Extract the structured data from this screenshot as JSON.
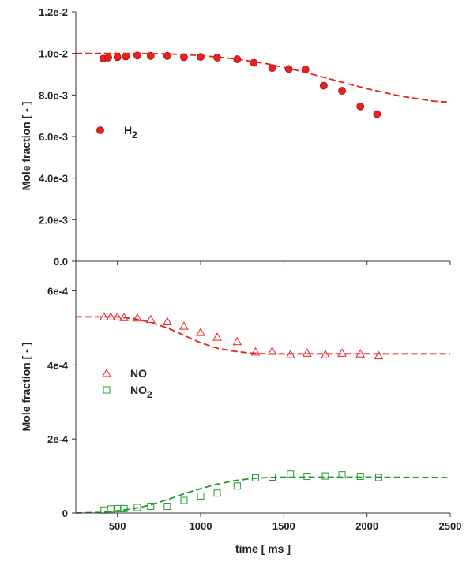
{
  "chart_data": [
    {
      "type": "scatter",
      "ylabel": "Mole fraction [ - ]",
      "xlim": [
        250,
        2500
      ],
      "ylim": [
        0,
        0.012
      ],
      "x_ticks": [
        500,
        1000,
        1500,
        2000,
        2500
      ],
      "y_ticks": [
        0,
        0.002,
        0.004,
        0.006,
        0.008,
        0.01,
        0.012
      ],
      "y_tick_labels": [
        "0.0",
        "2.0e-3",
        "4.0e-3",
        "6.0e-3",
        "8.0e-3",
        "1.0e-2",
        "1.2e-2"
      ],
      "legend_position": "middle-left",
      "series": [
        {
          "name": "H2",
          "name_main": "H",
          "name_sub": "2",
          "kind": "points",
          "marker": "filled-circle",
          "color": "#e8201e",
          "x": [
            415,
            445,
            500,
            550,
            620,
            700,
            800,
            900,
            1000,
            1100,
            1220,
            1320,
            1430,
            1530,
            1630,
            1740,
            1850,
            1960,
            2060
          ],
          "y": [
            0.00975,
            0.0098,
            0.00982,
            0.00985,
            0.0099,
            0.00988,
            0.00988,
            0.00982,
            0.00983,
            0.0098,
            0.00972,
            0.00955,
            0.0093,
            0.00925,
            0.00923,
            0.00845,
            0.0082,
            0.00745,
            0.00708
          ]
        },
        {
          "kind": "line",
          "style": "dashed",
          "color": "#e8201e",
          "x": [
            250,
            600,
            800,
            1000,
            1200,
            1400,
            1600,
            1800,
            2000,
            2200,
            2400,
            2500
          ],
          "y": [
            0.01,
            0.01,
            0.00998,
            0.0099,
            0.00975,
            0.0095,
            0.00915,
            0.00872,
            0.0083,
            0.00795,
            0.0077,
            0.00765
          ]
        }
      ]
    },
    {
      "type": "scatter",
      "xlabel": "time [ ms ]",
      "ylabel": "Mole fraction [ - ]",
      "xlim": [
        250,
        2500
      ],
      "ylim": [
        0,
        0.00068
      ],
      "x_ticks": [
        500,
        1000,
        1500,
        2000,
        2500
      ],
      "x_tick_labels": [
        "500",
        "1000",
        "1500",
        "2000",
        "2500"
      ],
      "y_ticks": [
        0,
        0.0002,
        0.0004,
        0.0006
      ],
      "y_tick_labels": [
        "0",
        "2e-4",
        "4e-4",
        "6e-4"
      ],
      "legend_position": "middle-left",
      "series": [
        {
          "name": "NO",
          "kind": "points",
          "marker": "open-triangle",
          "color": "#e8201e",
          "x": [
            420,
            460,
            500,
            540,
            620,
            700,
            800,
            900,
            1000,
            1100,
            1220,
            1330,
            1430,
            1540,
            1640,
            1750,
            1850,
            1960,
            2070
          ],
          "y": [
            0.00053,
            0.00053,
            0.00053,
            0.000528,
            0.000527,
            0.000523,
            0.000517,
            0.000505,
            0.000488,
            0.000475,
            0.000463,
            0.000435,
            0.000437,
            0.000428,
            0.000432,
            0.000428,
            0.000432,
            0.00043,
            0.000425
          ]
        },
        {
          "kind": "line",
          "style": "dashed",
          "color": "#e8201e",
          "x": [
            250,
            500,
            600,
            700,
            800,
            900,
            1000,
            1100,
            1200,
            1300,
            1400,
            1500,
            1700,
            2000,
            2500
          ],
          "y": [
            0.00053,
            0.00053,
            0.000525,
            0.000515,
            0.0005,
            0.00048,
            0.00046,
            0.000445,
            0.000437,
            0.000432,
            0.00043,
            0.00043,
            0.00043,
            0.00043,
            0.00043
          ]
        },
        {
          "name": "NO2",
          "name_main": "NO",
          "name_sub": "2",
          "kind": "points",
          "marker": "open-square",
          "color": "#1e9a2a",
          "x": [
            420,
            460,
            500,
            540,
            620,
            700,
            800,
            900,
            1000,
            1100,
            1220,
            1330,
            1430,
            1540,
            1640,
            1750,
            1850,
            1960,
            2070
          ],
          "y": [
            8e-06,
            1.1e-05,
            1.2e-05,
            1.2e-05,
            1.5e-05,
            1.8e-05,
            1.8e-05,
            3.4e-05,
            4.6e-05,
            5.4e-05,
            7.3e-05,
            9.5e-05,
            9.7e-05,
            0.000105,
            9.9e-05,
            0.0001,
            0.000103,
            9.9e-05,
            9.6e-05
          ]
        },
        {
          "kind": "line",
          "style": "dashed",
          "color": "#1e9a2a",
          "x": [
            250,
            400,
            500,
            600,
            700,
            800,
            900,
            1000,
            1100,
            1200,
            1300,
            1400,
            1500,
            1700,
            2000,
            2500
          ],
          "y": [
            0.0,
            2e-06,
            6e-06,
            1.2e-05,
            2.2e-05,
            3.6e-05,
            5.2e-05,
            6.6e-05,
            7.8e-05,
            8.7e-05,
            9.3e-05,
            9.6e-05,
            9.7e-05,
            9.7e-05,
            9.7e-05,
            9.6e-05
          ]
        }
      ]
    }
  ]
}
